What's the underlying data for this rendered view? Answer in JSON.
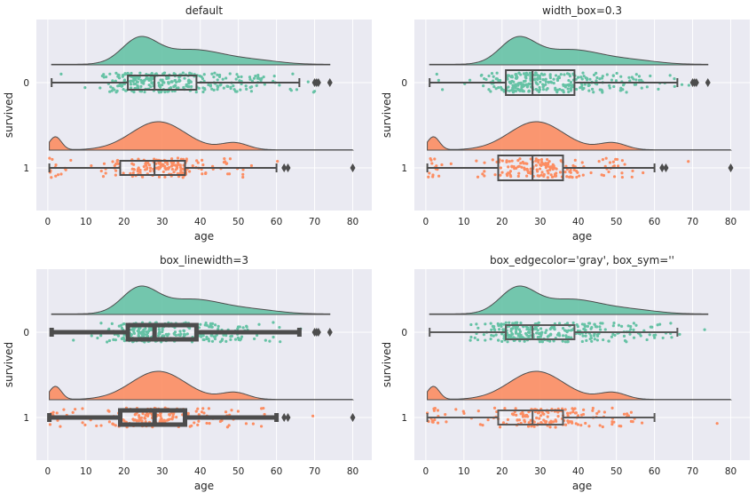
{
  "chart_data": [
    {
      "type": "raincloud",
      "title": "default",
      "xlabel": "age",
      "ylabel": "survived",
      "categories": [
        "0",
        "1"
      ],
      "xticks": [
        "0",
        "10",
        "20",
        "30",
        "40",
        "50",
        "60",
        "70",
        "80"
      ],
      "xlim": [
        -3,
        85
      ],
      "grid": true,
      "series": [
        {
          "category": "0",
          "color": "#66c2a5",
          "box": {
            "q1": 21,
            "median": 28,
            "q3": 39,
            "whisker_low": 1,
            "whisker_high": 66
          },
          "outliers": [
            70,
            70.5,
            71,
            74
          ],
          "density_range": [
            1,
            74
          ]
        },
        {
          "category": "1",
          "color": "#fc8d62",
          "box": {
            "q1": 19,
            "median": 28,
            "q3": 36,
            "whisker_low": 0.4,
            "whisker_high": 60
          },
          "outliers": [
            62,
            63,
            80
          ],
          "density_range": [
            0.4,
            80
          ]
        }
      ],
      "box_style": {
        "linewidth": 2,
        "edgecolor": "#4d4d4d",
        "width": 0.15,
        "outlier_symbol": "d"
      }
    },
    {
      "type": "raincloud",
      "title": "width_box=0.3",
      "xlabel": "age",
      "ylabel": "survived",
      "categories": [
        "0",
        "1"
      ],
      "xticks": [
        "0",
        "10",
        "20",
        "30",
        "40",
        "50",
        "60",
        "70",
        "80"
      ],
      "xlim": [
        -3,
        85
      ],
      "grid": true,
      "series": [
        {
          "category": "0",
          "color": "#66c2a5",
          "box": {
            "q1": 21,
            "median": 28,
            "q3": 39,
            "whisker_low": 1,
            "whisker_high": 66
          },
          "outliers": [
            70,
            70.5,
            71,
            74
          ],
          "density_range": [
            1,
            74
          ]
        },
        {
          "category": "1",
          "color": "#fc8d62",
          "box": {
            "q1": 19,
            "median": 28,
            "q3": 36,
            "whisker_low": 0.4,
            "whisker_high": 60
          },
          "outliers": [
            62,
            63,
            80
          ],
          "density_range": [
            0.4,
            80
          ]
        }
      ],
      "box_style": {
        "linewidth": 2,
        "edgecolor": "#4d4d4d",
        "width": 0.3,
        "outlier_symbol": "d"
      }
    },
    {
      "type": "raincloud",
      "title": "box_linewidth=3",
      "xlabel": "age",
      "ylabel": "survived",
      "categories": [
        "0",
        "1"
      ],
      "xticks": [
        "0",
        "10",
        "20",
        "30",
        "40",
        "50",
        "60",
        "70",
        "80"
      ],
      "xlim": [
        -3,
        85
      ],
      "grid": true,
      "series": [
        {
          "category": "0",
          "color": "#66c2a5",
          "box": {
            "q1": 21,
            "median": 28,
            "q3": 39,
            "whisker_low": 1,
            "whisker_high": 66
          },
          "outliers": [
            70,
            70.5,
            71,
            74
          ],
          "density_range": [
            1,
            74
          ]
        },
        {
          "category": "1",
          "color": "#fc8d62",
          "box": {
            "q1": 19,
            "median": 28,
            "q3": 36,
            "whisker_low": 0.4,
            "whisker_high": 60
          },
          "outliers": [
            62,
            63,
            80
          ],
          "density_range": [
            0.4,
            80
          ]
        }
      ],
      "box_style": {
        "linewidth": 3,
        "edgecolor": "#4d4d4d",
        "width": 0.15,
        "outlier_symbol": "d"
      }
    },
    {
      "type": "raincloud",
      "title": "box_edgecolor='gray', box_sym=''",
      "xlabel": "age",
      "ylabel": "survived",
      "categories": [
        "0",
        "1"
      ],
      "xticks": [
        "0",
        "10",
        "20",
        "30",
        "40",
        "50",
        "60",
        "70",
        "80"
      ],
      "xlim": [
        -3,
        85
      ],
      "grid": true,
      "series": [
        {
          "category": "0",
          "color": "#66c2a5",
          "box": {
            "q1": 21,
            "median": 28,
            "q3": 39,
            "whisker_low": 1,
            "whisker_high": 66
          },
          "outliers": [],
          "density_range": [
            1,
            74
          ]
        },
        {
          "category": "1",
          "color": "#fc8d62",
          "box": {
            "q1": 19,
            "median": 28,
            "q3": 36,
            "whisker_low": 0.4,
            "whisker_high": 60
          },
          "outliers": [],
          "density_range": [
            0.4,
            80
          ]
        }
      ],
      "box_style": {
        "linewidth": 2,
        "edgecolor": "#5a5a5a",
        "width": 0.15,
        "outlier_symbol": ""
      }
    }
  ],
  "style": {
    "axes_bg": "#eaeaf2",
    "grid_color": "#ffffff"
  }
}
